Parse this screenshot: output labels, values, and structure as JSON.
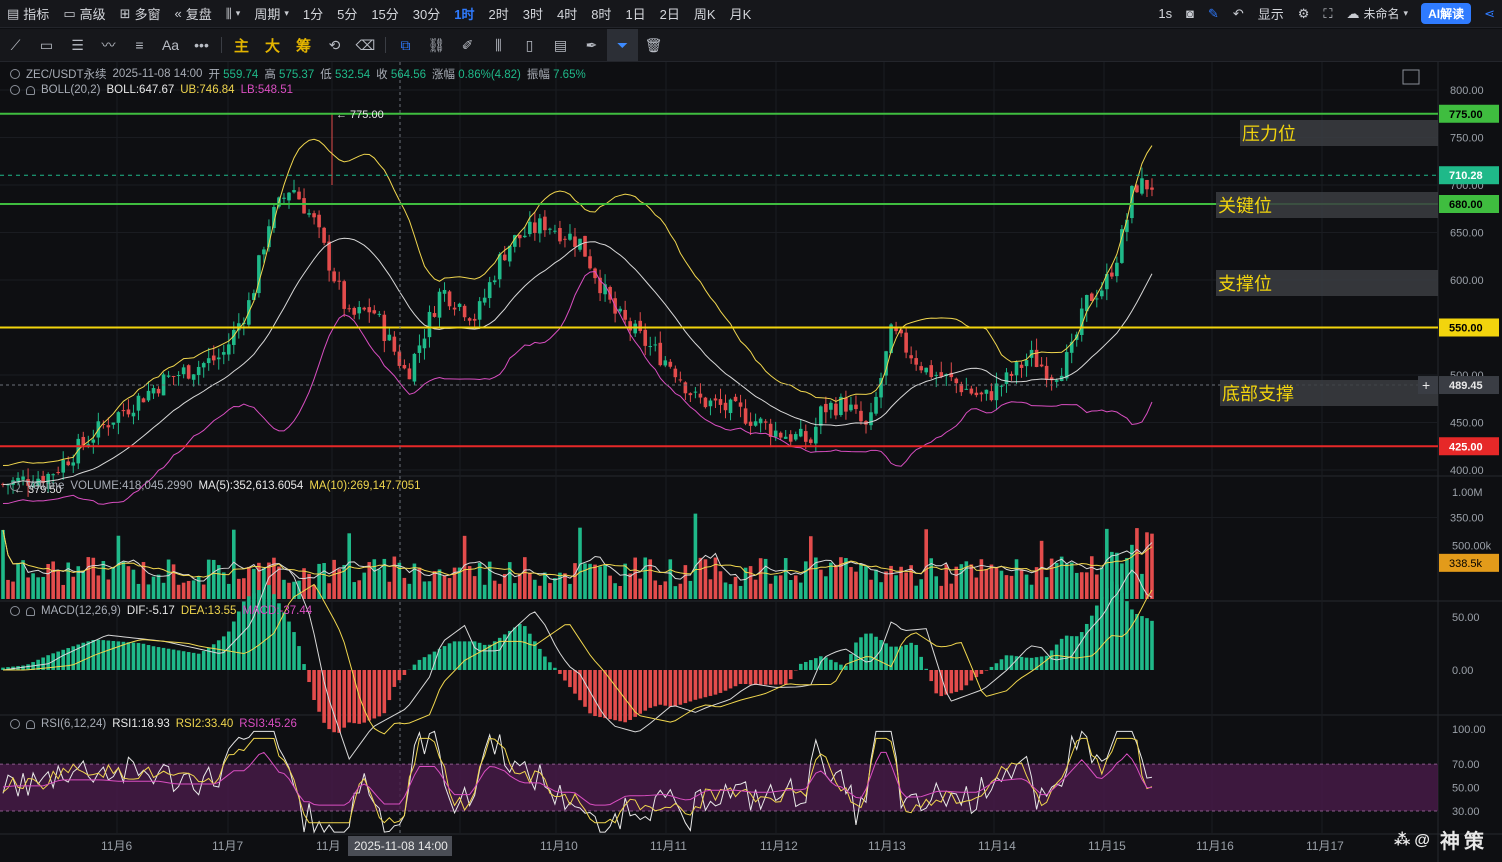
{
  "topbar": {
    "indicator": "指标",
    "advanced": "高级",
    "multi_window": "多窗",
    "replay": "复盘",
    "period": "周期",
    "intervals": [
      "1分",
      "5分",
      "15分",
      "30分",
      "1时",
      "2时",
      "3时",
      "4时",
      "8时",
      "1日",
      "2日",
      "周K",
      "月K"
    ],
    "active_interval": "1时",
    "refresh": "1s",
    "display": "显示",
    "layout_name": "未命名",
    "ai_button": "AI解读"
  },
  "toolbar": {
    "main": "主",
    "big": "大",
    "chips": "筹"
  },
  "legend": {
    "symbol": "ZEC/USDT永续",
    "datetime": "2025-11-08 14:00",
    "open_label": "开",
    "open": "559.74",
    "high_label": "高",
    "high": "575.37",
    "low_label": "低",
    "low": "532.54",
    "close_label": "收",
    "close": "564.56",
    "change_label": "涨幅",
    "change": "0.86%(4.82)",
    "amp_label": "振幅",
    "amp": "7.65%",
    "boll_name": "BOLL(20,2)",
    "boll": "BOLL:647.67",
    "ub": "UB:746.84",
    "lb": "LB:548.51",
    "vol_name": "Volume",
    "vol": "VOLUME:418,045.2990",
    "ma5": "MA(5):352,613.6054",
    "ma10": "MA(10):269,147.7051",
    "macd_name": "MACD(12,26,9)",
    "dif": "DIF:-5.17",
    "dea": "DEA:13.55",
    "macd": "MACD:-37.44",
    "rsi_name": "RSI(6,12,24)",
    "rsi1": "RSI1:18.93",
    "rsi2": "RSI2:33.40",
    "rsi3": "RSI3:45.26"
  },
  "annotations": {
    "high_marker": "775.00",
    "low_marker": "379.50",
    "resistance": "压力位",
    "key": "关键位",
    "support": "支撑位",
    "bottom_support": "底部支撑"
  },
  "price_axis": [
    "800.00",
    "750.00",
    "700.00",
    "650.00",
    "600.00",
    "550.00",
    "500.00",
    "450.00",
    "400.00",
    "350.00"
  ],
  "price_tags": {
    "l775": "775.00",
    "current": "710.28",
    "l680": "680.00",
    "l550": "550.00",
    "crosshair": "489.45",
    "l425": "425.00"
  },
  "volume_axis": [
    "1.00M",
    "500.00k"
  ],
  "volume_tag": "338.5k",
  "macd_axis": [
    "50.00",
    "0.00"
  ],
  "rsi_axis": [
    "100.00",
    "70.00",
    "50.00",
    "30.00"
  ],
  "date_axis": [
    "11月6",
    "11月7",
    "11月",
    "9",
    "11月10",
    "11月11",
    "11月12",
    "11月13",
    "11月14",
    "11月15",
    "11月16",
    "11月17"
  ],
  "crosshair_time": "2025-11-08 14:00",
  "watermark": "神策",
  "colors": {
    "up": "#1fb989",
    "down": "#e34c4c",
    "boll_mid": "#d8d8d8",
    "boll_up": "#f0d64e",
    "boll_low": "#d94ec1",
    "accent": "#2f7bff",
    "level_green": "#3fbd3f",
    "level_yellow": "#f2d40d",
    "level_red": "#e62828"
  },
  "chart_data": {
    "type": "candlestick",
    "symbol": "ZEC/USDT永续",
    "interval": "1时",
    "ylim": [
      350,
      800
    ],
    "horizontal_levels": [
      {
        "value": 775,
        "label": "压力位",
        "color": "#3fbd3f"
      },
      {
        "value": 680,
        "label": "关键位",
        "color": "#3fbd3f"
      },
      {
        "value": 550,
        "label": "支撑位",
        "color": "#f2d40d"
      },
      {
        "value": 425,
        "label": "底部支撑",
        "color": "#e62828"
      }
    ],
    "price_path": {
      "x": [
        0,
        0.04,
        0.09,
        0.14,
        0.19,
        0.215,
        0.23,
        0.25,
        0.27,
        0.3,
        0.32,
        0.35,
        0.38,
        0.41,
        0.43,
        0.44,
        0.47,
        0.5,
        0.53,
        0.56,
        0.58,
        0.6,
        0.64,
        0.67,
        0.7,
        0.71,
        0.73,
        0.75,
        0.77,
        0.8,
        0.82,
        0.85,
        0.87,
        0.89,
        0.91,
        0.925,
        0.94,
        0.955,
        0.965,
        0.973,
        0.98
      ],
      "y": [
        385,
        395,
        450,
        495,
        520,
        580,
        660,
        700,
        660,
        560,
        570,
        500,
        590,
        560,
        620,
        640,
        660,
        640,
        565,
        530,
        510,
        475,
        460,
        440,
        430,
        465,
        470,
        440,
        545,
        505,
        495,
        475,
        495,
        520,
        500,
        520,
        580,
        595,
        625,
        660,
        700
      ]
    },
    "ticks_x": [
      "11月6",
      "11月7",
      "11月",
      "9",
      "11月10",
      "11月11",
      "11月12",
      "11月13",
      "11月14",
      "11月15",
      "11月16",
      "11月17"
    ],
    "last_price": 710.28,
    "high": 775.0,
    "low": 379.5
  }
}
